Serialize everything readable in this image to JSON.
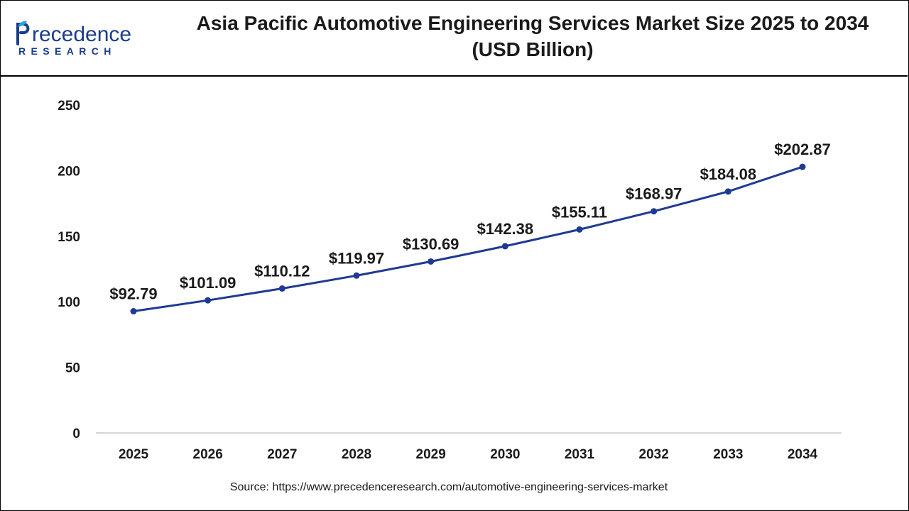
{
  "logo": {
    "brand_word": "recedence",
    "brand_sub": "RESEARCH"
  },
  "title": {
    "line1": "Asia Pacific Automotive Engineering Services Market Size 2025 to 2034",
    "line2": "(USD Billion)"
  },
  "colors": {
    "line": "#1f3a93",
    "brand": "#1a3c8c",
    "axis": "#c8c8c8"
  },
  "chart_data": {
    "type": "line",
    "title": "Asia Pacific Automotive Engineering Services Market Size 2025 to 2034 (USD Billion)",
    "categories": [
      "2025",
      "2026",
      "2027",
      "2028",
      "2029",
      "2030",
      "2031",
      "2032",
      "2033",
      "2034"
    ],
    "values": [
      92.79,
      101.09,
      110.12,
      119.97,
      130.69,
      142.38,
      155.11,
      168.97,
      184.08,
      202.87
    ],
    "data_labels": [
      "$92.79",
      "$101.09",
      "$110.12",
      "$119.97",
      "$130.69",
      "$142.38",
      "$155.11",
      "$168.97",
      "$184.08",
      "$202.87"
    ],
    "ylim": [
      0,
      250
    ],
    "yticks": [
      "0",
      "50",
      "100",
      "150",
      "200",
      "250"
    ],
    "grid": false,
    "legend": "none",
    "xlabel": "",
    "ylabel": ""
  },
  "source": "Source: https://www.precedenceresearch.com/automotive-engineering-services-market"
}
